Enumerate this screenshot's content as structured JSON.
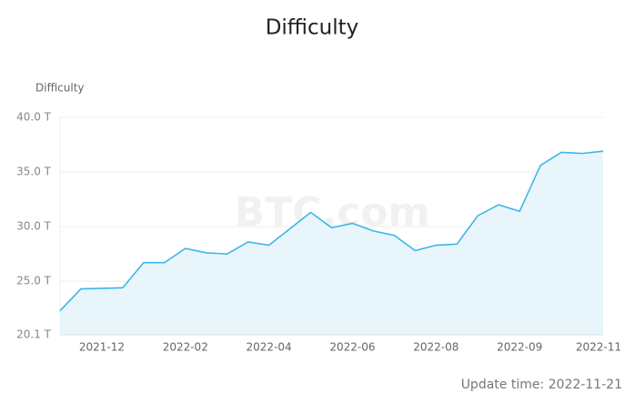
{
  "chart_data": {
    "type": "area",
    "title": "Difficulty",
    "y_label": "Difficulty",
    "watermark": "BTC.com",
    "update_time": "Update time: 2022-11-21",
    "categories": [
      null,
      null,
      "2021-12",
      null,
      null,
      null,
      "2022-02",
      null,
      null,
      null,
      "2022-04",
      null,
      null,
      null,
      "2022-06",
      null,
      null,
      null,
      "2022-08",
      null,
      null,
      null,
      "2022-09",
      null,
      null,
      null,
      "2022-11"
    ],
    "series": [
      {
        "name": "Difficulty",
        "color": "#3db5ea",
        "values": [
          22.3,
          24.3,
          24.35,
          24.4,
          26.7,
          26.7,
          28.0,
          27.6,
          27.5,
          28.6,
          28.3,
          29.8,
          31.3,
          29.9,
          30.3,
          29.6,
          29.2,
          27.8,
          28.3,
          28.4,
          31.0,
          32.0,
          31.4,
          35.6,
          36.8,
          36.7,
          36.9
        ]
      }
    ],
    "ylim": [
      20.1,
      40
    ],
    "yticks": [
      {
        "value": 20.1,
        "label": "20.1 T"
      },
      {
        "value": 25,
        "label": "25.0 T"
      },
      {
        "value": 30,
        "label": "30.0 T"
      },
      {
        "value": 35,
        "label": "35.0 T"
      },
      {
        "value": 40,
        "label": "40.0 T"
      }
    ],
    "grid": true,
    "fill_color": "#e8f6fb"
  }
}
